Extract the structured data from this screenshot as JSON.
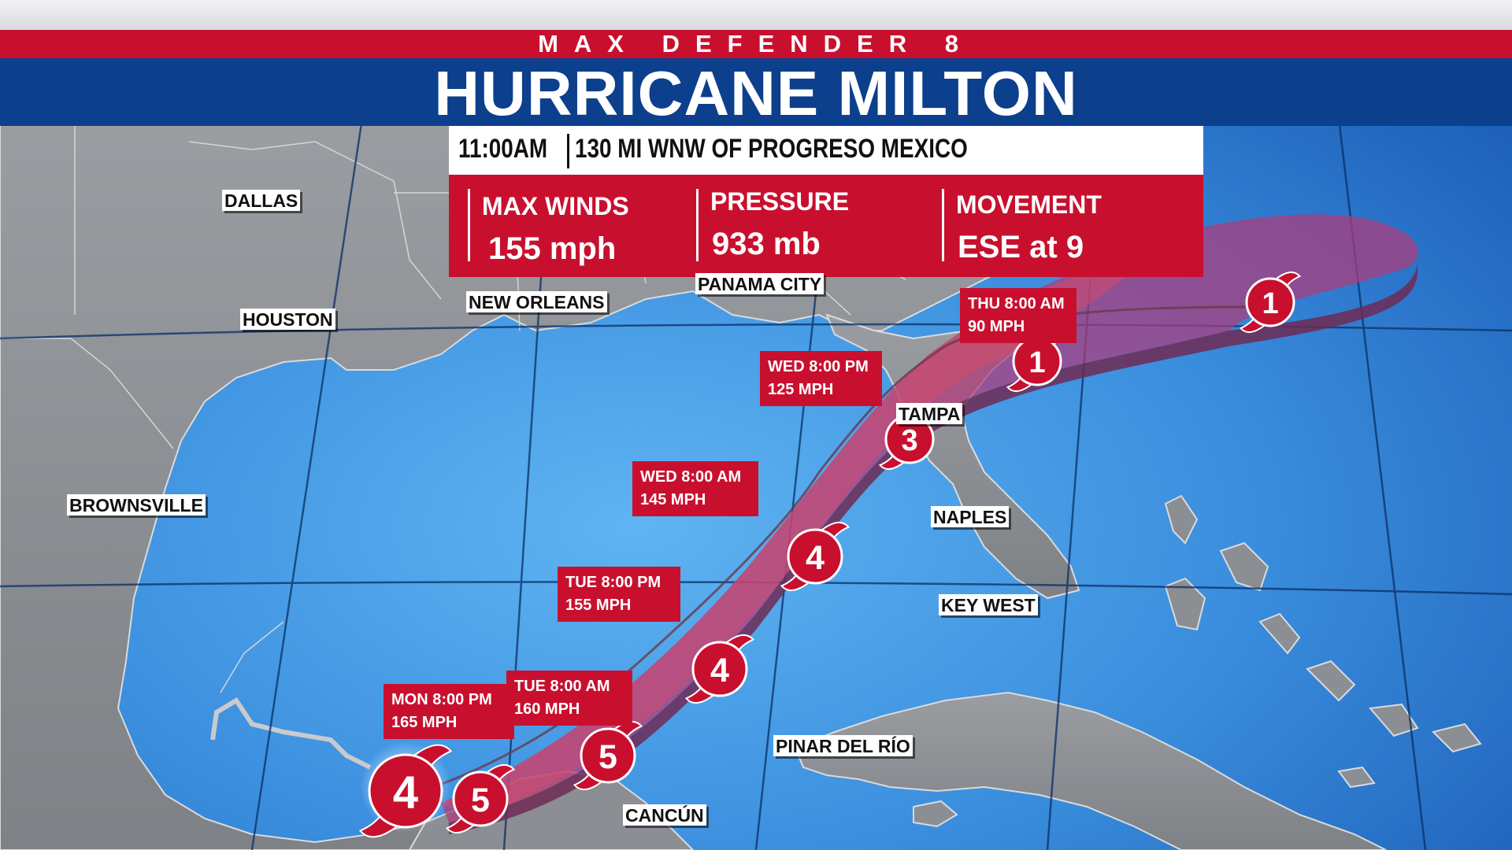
{
  "header": {
    "brand": "MAX DEFENDER 8",
    "title": "HURRICANE MILTON"
  },
  "advisory": {
    "time": "11:00AM",
    "location": "130 MI WNW OF PROGRESO MEXICO",
    "stats": [
      {
        "label": "MAX WINDS",
        "value": "155 mph"
      },
      {
        "label": "PRESSURE",
        "value": "933 mb"
      },
      {
        "label": "MOVEMENT",
        "value": "ESE at 9"
      }
    ]
  },
  "cities": [
    "DALLAS",
    "HOUSTON",
    "NEW ORLEANS",
    "PANAMA CITY",
    "BROWNSVILLE",
    "TAMPA",
    "NAPLES",
    "KEY WEST",
    "PINAR DEL RÍO",
    "CANCÚN"
  ],
  "forecast_points": [
    {
      "category": "4"
    },
    {
      "category": "5"
    },
    {
      "category": "5"
    },
    {
      "category": "4"
    },
    {
      "category": "4"
    },
    {
      "category": "3"
    },
    {
      "category": "1"
    },
    {
      "category": "1"
    }
  ],
  "forecast_labels": [
    {
      "time": "MON 8:00 PM",
      "wind": "165 MPH"
    },
    {
      "time": "TUE 8:00 AM",
      "wind": "160 MPH"
    },
    {
      "time": "TUE 8:00 PM",
      "wind": "155 MPH"
    },
    {
      "time": "WED 8:00 AM",
      "wind": "145 MPH"
    },
    {
      "time": "WED 8:00 PM",
      "wind": "125 MPH"
    },
    {
      "time": "THU 8:00 AM",
      "wind": "90 MPH"
    }
  ],
  "colors": {
    "red": "#c8102e",
    "navy": "#0c3f8c",
    "ocean": "#3a8ddd",
    "land": "#8b8e92",
    "cone": "#a83a78"
  }
}
